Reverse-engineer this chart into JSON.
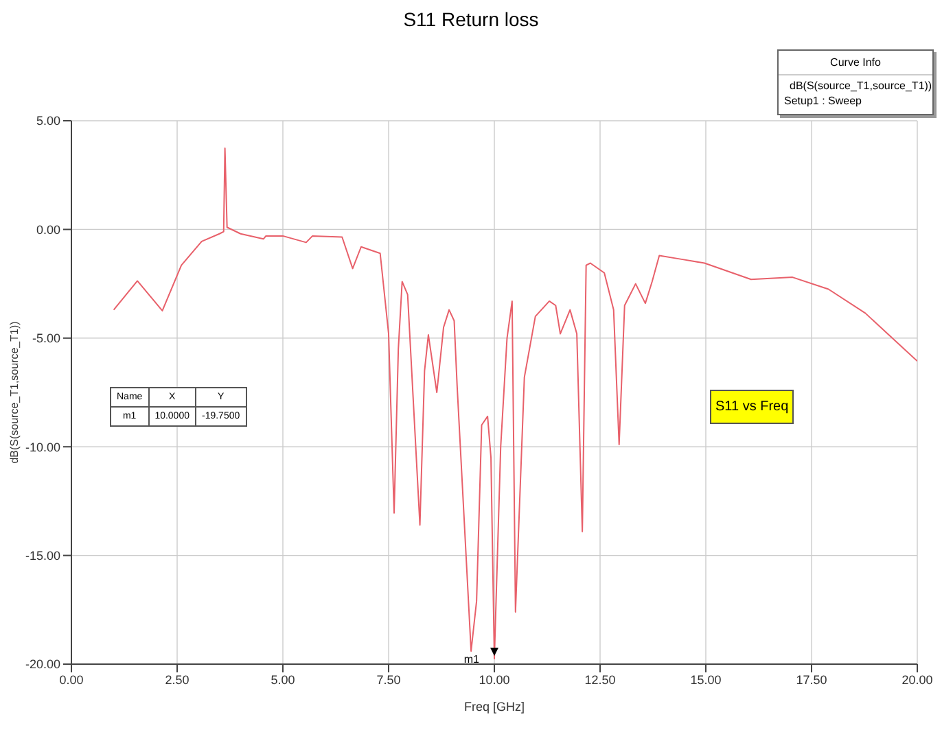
{
  "chart_data": {
    "type": "line",
    "title": "S11 Return loss",
    "xlabel": "Freq [GHz]",
    "ylabel": "dB(S(source_T1,source_T1))",
    "legend_title": "Curve Info",
    "legend": "top right",
    "grid": true,
    "xlim": [
      0,
      20
    ],
    "xticks": [
      {
        "value": 0,
        "label": "0.00"
      },
      {
        "value": 2.5,
        "label": "2.50"
      },
      {
        "value": 5,
        "label": "5.00"
      },
      {
        "value": 7.5,
        "label": "7.50"
      },
      {
        "value": 10,
        "label": "10.00"
      },
      {
        "value": 12.5,
        "label": "12.50"
      },
      {
        "value": 15,
        "label": "15.00"
      },
      {
        "value": 17.5,
        "label": "17.50"
      },
      {
        "value": 20,
        "label": "20.00"
      }
    ],
    "ylim": [
      -20,
      5
    ],
    "yticks": [
      {
        "value": -20,
        "label": "-20.00"
      },
      {
        "value": -15,
        "label": "-15.00"
      },
      {
        "value": -10,
        "label": "-10.00"
      },
      {
        "value": -5,
        "label": "-5.00"
      },
      {
        "value": 0,
        "label": "0.00"
      },
      {
        "value": 5,
        "label": "5.00"
      }
    ],
    "series": [
      {
        "name": "dB(S(source_T1,source_T1))",
        "color": "#e8606a",
        "x": [
          1.0,
          1.56,
          2.15,
          2.6,
          3.08,
          3.5,
          3.6,
          3.63,
          3.68,
          4.0,
          4.54,
          4.6,
          5.0,
          5.55,
          5.7,
          6.4,
          6.65,
          6.85,
          7.3,
          7.5,
          7.63,
          7.73,
          7.82,
          7.95,
          8.24,
          8.35,
          8.44,
          8.64,
          8.8,
          8.93,
          9.05,
          9.12,
          9.25,
          9.45,
          9.58,
          9.7,
          9.84,
          9.92,
          10.0,
          10.15,
          10.3,
          10.42,
          10.5,
          10.71,
          10.97,
          11.3,
          11.45,
          11.56,
          11.79,
          11.95,
          12.08,
          12.17,
          12.27,
          12.6,
          12.82,
          12.95,
          13.08,
          13.34,
          13.57,
          13.73,
          13.9,
          14.45,
          14.97,
          16.07,
          17.05,
          17.9,
          18.77,
          20.0
        ],
        "values": [
          -3.7,
          -2.37,
          -3.74,
          -1.65,
          -0.55,
          -0.2,
          -0.1,
          3.74,
          0.1,
          -0.2,
          -0.44,
          -0.3,
          -0.3,
          -0.6,
          -0.3,
          -0.35,
          -1.8,
          -0.8,
          -1.1,
          -4.8,
          -13.05,
          -5.5,
          -2.4,
          -3.0,
          -13.6,
          -6.5,
          -4.85,
          -7.5,
          -4.5,
          -3.7,
          -4.2,
          -7.2,
          -12.0,
          -19.4,
          -17.1,
          -9.0,
          -8.6,
          -10.5,
          -19.75,
          -10.0,
          -5.0,
          -3.3,
          -17.6,
          -6.8,
          -4.0,
          -3.3,
          -3.5,
          -4.8,
          -3.7,
          -4.8,
          -13.9,
          -1.65,
          -1.55,
          -2.0,
          -3.7,
          -9.9,
          -3.5,
          -2.5,
          -3.4,
          -2.4,
          -1.2,
          -1.38,
          -1.55,
          -2.3,
          -2.2,
          -2.75,
          -3.85,
          -6.06
        ]
      }
    ],
    "annotations": [
      "S11 vs Freq",
      "Setup1 : Sweep",
      "Name",
      "X",
      "Y",
      "m1",
      "10.0000",
      "-19.7500",
      {
        "text": "m1",
        "x": 10,
        "y": -19.75
      }
    ]
  }
}
